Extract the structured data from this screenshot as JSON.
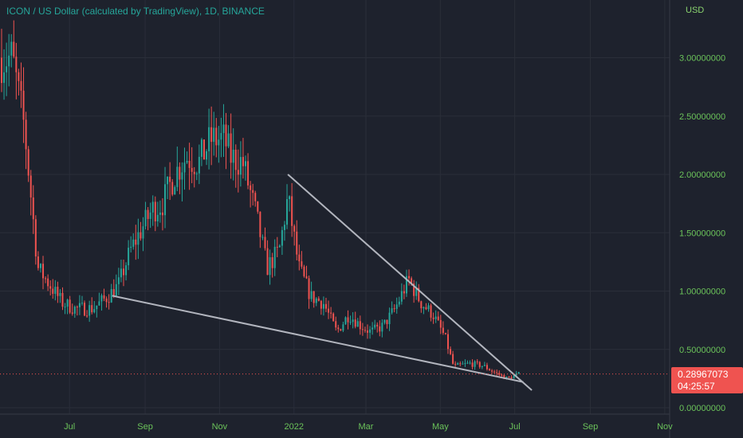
{
  "header": {
    "title": "ICON / US Dollar (calculated by TradingView), 1D, BINANCE",
    "currency": "USD"
  },
  "last_price": {
    "value": "0.28967073",
    "countdown": "04:25:57"
  },
  "colors": {
    "background": "#1e222d",
    "grid": "#2a2e39",
    "up": "#26a69a",
    "down": "#ef5350",
    "axis_text": "#6bc35a",
    "trendline": "#b2b5be"
  },
  "chart_data": {
    "type": "candlestick",
    "title": "ICON / US Dollar (calculated by TradingView), 1D, BINANCE",
    "ylabel": "USD",
    "ylim": [
      0,
      3.2
    ],
    "yticks": [
      "3.00000000",
      "2.50000000",
      "2.00000000",
      "1.50000000",
      "1.00000000",
      "0.50000000",
      "0.00000000"
    ],
    "xticks": [
      "Jul",
      "Sep",
      "Nov",
      "2022",
      "Mar",
      "May",
      "Jul",
      "Sep",
      "Nov"
    ],
    "series": [
      {
        "type": "close",
        "x": [
          "2021-05-15",
          "2021-05-25",
          "2021-06-05",
          "2021-06-15",
          "2021-06-25",
          "2021-07-05",
          "2021-07-20",
          "2021-08-01",
          "2021-08-10",
          "2021-08-20",
          "2021-08-30",
          "2021-09-07",
          "2021-09-15",
          "2021-09-25",
          "2021-10-05",
          "2021-10-15",
          "2021-10-25",
          "2021-11-05",
          "2021-11-10",
          "2021-11-20",
          "2021-12-01",
          "2021-12-10",
          "2021-12-20",
          "2021-12-27",
          "2022-01-05",
          "2022-01-15",
          "2022-01-25",
          "2022-02-05",
          "2022-02-15",
          "2022-02-25",
          "2022-03-05",
          "2022-03-15",
          "2022-03-25",
          "2022-04-05",
          "2022-04-15",
          "2022-04-25",
          "2022-05-05",
          "2022-05-12",
          "2022-05-25",
          "2022-06-05",
          "2022-06-15",
          "2022-06-25",
          "2022-07-05"
        ],
        "values": [
          3.0,
          2.4,
          1.2,
          1.05,
          0.9,
          0.85,
          0.85,
          0.95,
          1.05,
          1.35,
          1.55,
          1.7,
          1.75,
          2.0,
          2.15,
          2.1,
          2.3,
          2.3,
          2.15,
          2.1,
          1.65,
          1.2,
          1.35,
          1.8,
          1.2,
          0.95,
          0.9,
          0.65,
          0.8,
          0.7,
          0.65,
          0.7,
          0.85,
          1.1,
          0.9,
          0.8,
          0.6,
          0.35,
          0.38,
          0.36,
          0.3,
          0.25,
          0.29
        ]
      }
    ],
    "trendlines": [
      {
        "from": [
          "2021-12-27",
          2.0
        ],
        "to": [
          "2022-07-15",
          0.15
        ]
      },
      {
        "from": [
          "2021-08-05",
          0.96
        ],
        "to": [
          "2022-07-08",
          0.22
        ]
      }
    ],
    "last_price_line": 0.28967073,
    "grid": true,
    "legend": "none"
  }
}
